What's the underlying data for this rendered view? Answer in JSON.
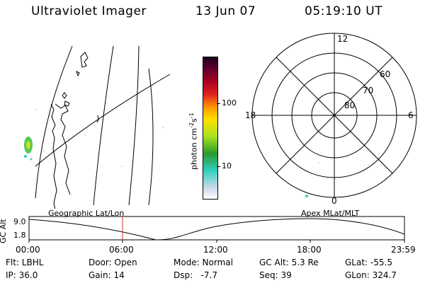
{
  "header": {
    "title": "Ultraviolet Imager",
    "date": "13 Jun 07",
    "time": "05:19:10 UT"
  },
  "colorbar": {
    "unit_label": "photon cm",
    "unit_exp1": "-2",
    "unit_s": "s",
    "unit_exp2": "-1",
    "ticks": [
      "100",
      "10"
    ],
    "colors": [
      "#ffffff",
      "#c8d8e8",
      "#30d0c0",
      "#2a9a2a",
      "#a8e020",
      "#ffe000",
      "#ffa000",
      "#e02020",
      "#a00020",
      "#600030",
      "#200020"
    ]
  },
  "polar": {
    "mlt_labels": [
      "12",
      "18",
      "6",
      "0"
    ],
    "lat_labels": [
      "60",
      "70",
      "80"
    ]
  },
  "altplot": {
    "left_label": "Geographic Lat/Lon",
    "right_label": "Apex MLat/MLT",
    "axis_title": "GC Alt",
    "y_ticks": [
      "9.0",
      "1.8"
    ],
    "x_ticks": [
      "00:00",
      "06:00",
      "12:00",
      "18:00",
      "23:59"
    ],
    "marker_color": "#cc3333"
  },
  "info": {
    "flt": "Flt: LBHL",
    "ip": "IP: 36.0",
    "door": "Door: Open",
    "gain": "Gain: 14",
    "mode": "Mode: Normal",
    "dsp": "Dsp:   -7.7",
    "gcalt": "GC Alt: 5.3 Re",
    "seq": "Seq: 39",
    "glat": "GLat: -55.5",
    "glon": "GLon: 324.7"
  }
}
